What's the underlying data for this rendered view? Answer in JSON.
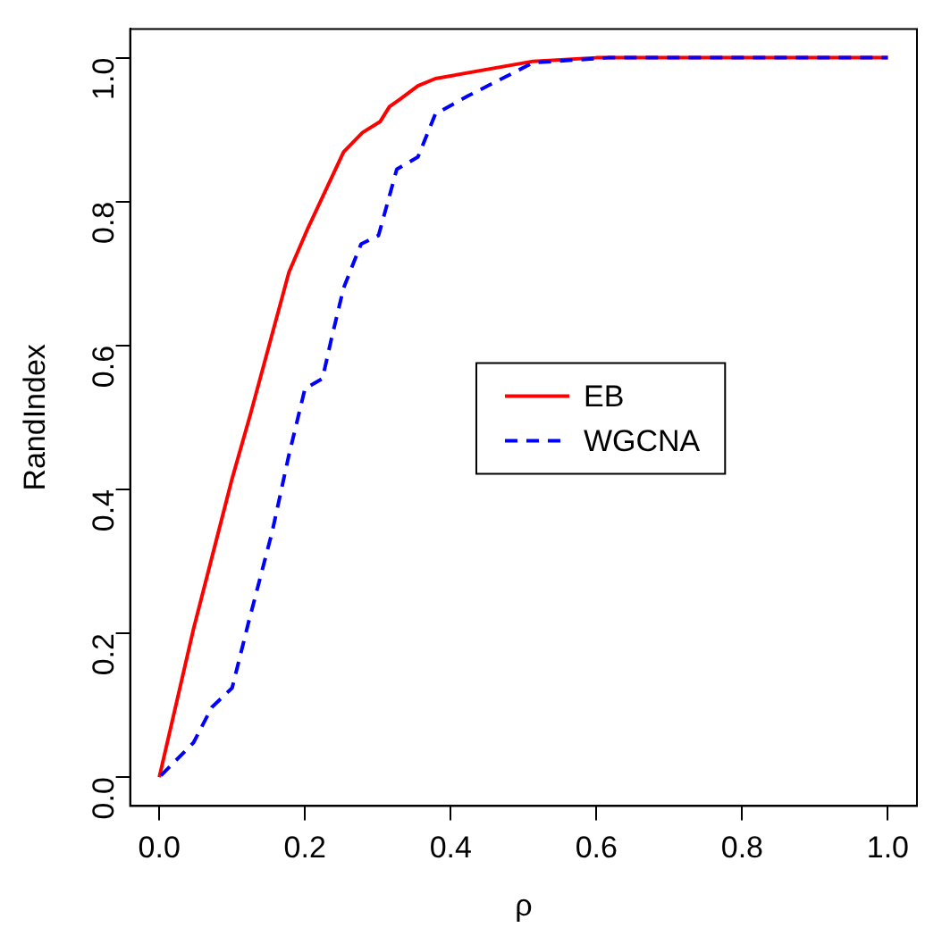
{
  "chart_data": {
    "type": "line",
    "xlabel": "ρ",
    "ylabel": "RandIndex",
    "xlim": [
      -0.04,
      1.04
    ],
    "ylim": [
      -0.04,
      1.04
    ],
    "xticks": [
      {
        "value": 0,
        "label": "0.0"
      },
      0.2,
      0.4,
      0.6,
      0.8,
      {
        "value": 1,
        "label": "1.0"
      }
    ],
    "yticks": [
      {
        "value": 0,
        "label": "0.0"
      },
      0.2,
      0.4,
      0.6,
      0.8,
      {
        "value": 1,
        "label": "1.0"
      }
    ],
    "grid": false,
    "legend": "center",
    "marker": "none",
    "series": [
      {
        "name": "EB",
        "color": "#ff0000",
        "line_style": "solid",
        "x": [
          0,
          0.047,
          0.1,
          0.125,
          0.178,
          0.204,
          0.253,
          0.279,
          0.303,
          0.316,
          0.33,
          0.355,
          0.379,
          0.513,
          0.6,
          1
        ],
        "values": [
          0,
          0.206,
          0.415,
          0.504,
          0.702,
          0.763,
          0.869,
          0.896,
          0.911,
          0.932,
          0.942,
          0.961,
          0.971,
          0.995,
          1,
          1
        ]
      },
      {
        "name": "WGCNA",
        "color": "#0000ff",
        "line_style": "dashed",
        "x": [
          0,
          0.047,
          0.072,
          0.1,
          0.122,
          0.155,
          0.178,
          0.2,
          0.224,
          0.236,
          0.253,
          0.277,
          0.301,
          0.326,
          0.355,
          0.379,
          0.424,
          0.513,
          0.616,
          1
        ],
        "values": [
          0,
          0.048,
          0.097,
          0.124,
          0.213,
          0.341,
          0.448,
          0.54,
          0.554,
          0.608,
          0.68,
          0.741,
          0.753,
          0.845,
          0.862,
          0.922,
          0.947,
          0.993,
          1,
          1
        ]
      }
    ]
  }
}
